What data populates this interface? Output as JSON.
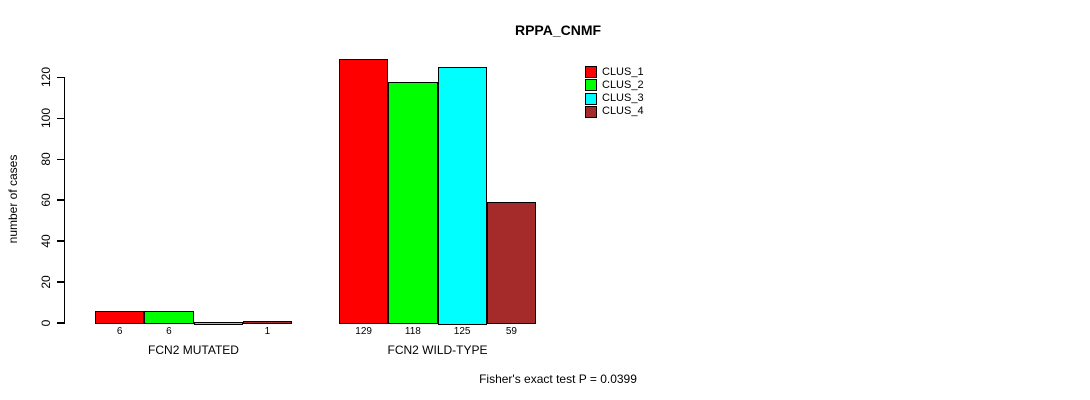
{
  "chart_data": {
    "type": "bar",
    "title": "RPPA_CNMF",
    "xlabel": "",
    "ylabel": "number of cases",
    "categories": [
      "FCN2 MUTATED",
      "FCN2 WILD-TYPE"
    ],
    "series": [
      {
        "name": "CLUS_1",
        "color": "#ff0000",
        "values": [
          6,
          129
        ]
      },
      {
        "name": "CLUS_2",
        "color": "#00ff00",
        "values": [
          6,
          118
        ]
      },
      {
        "name": "CLUS_3",
        "color": "#00ffff",
        "values": [
          0,
          125
        ]
      },
      {
        "name": "CLUS_4",
        "color": "#a52a2a",
        "values": [
          1,
          59
        ]
      }
    ],
    "bar_value_labels": [
      [
        "6",
        "6",
        "",
        "1"
      ],
      [
        "129",
        "118",
        "125",
        "59"
      ]
    ],
    "yticks": [
      0,
      20,
      40,
      60,
      80,
      100,
      120
    ],
    "ylim": [
      0,
      129
    ],
    "grid": false,
    "legend": {
      "position": "top-right",
      "entries": [
        "CLUS_1",
        "CLUS_2",
        "CLUS_3",
        "CLUS_4"
      ]
    },
    "annotation": "Fisher's exact test P = 0.0399"
  }
}
